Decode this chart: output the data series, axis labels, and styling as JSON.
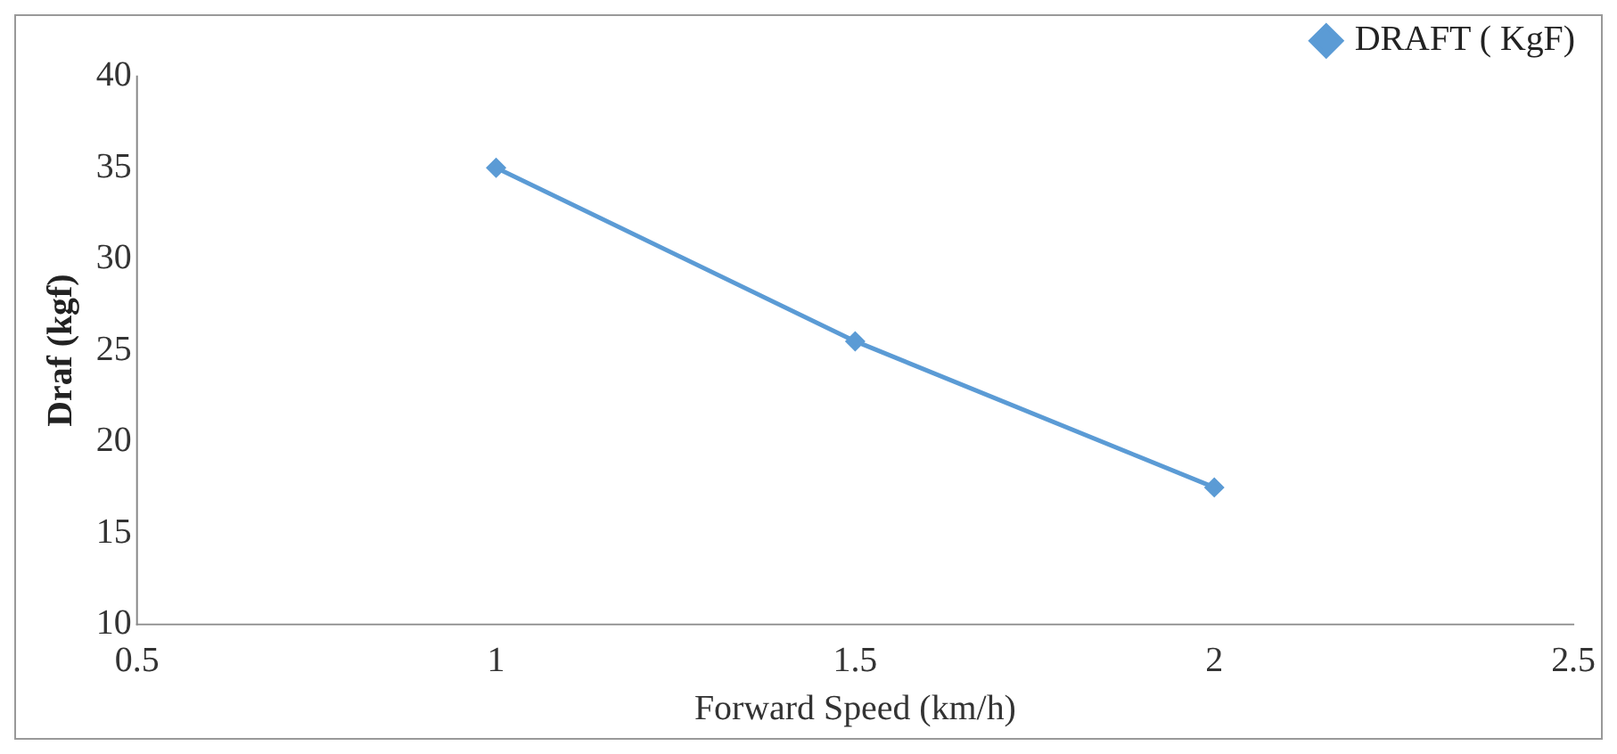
{
  "chart_data": {
    "type": "line",
    "xlabel": "Forward Speed (km/h)",
    "ylabel": "Draf (kgf)",
    "x": [
      1,
      1.5,
      2
    ],
    "series": [
      {
        "name": "DRAFT ( KgF)",
        "color": "#5b9bd5",
        "values": [
          35,
          25.5,
          17.5
        ]
      }
    ],
    "xlim": [
      0.5,
      2.5
    ],
    "xticks": [
      0.5,
      1,
      1.5,
      2,
      2.5
    ],
    "ylim": [
      10,
      40
    ],
    "yticks": [
      10,
      15,
      20,
      25,
      30,
      35,
      40
    ],
    "grid": false,
    "legend": "top right",
    "marker": "diamond",
    "line_style": "solid"
  }
}
